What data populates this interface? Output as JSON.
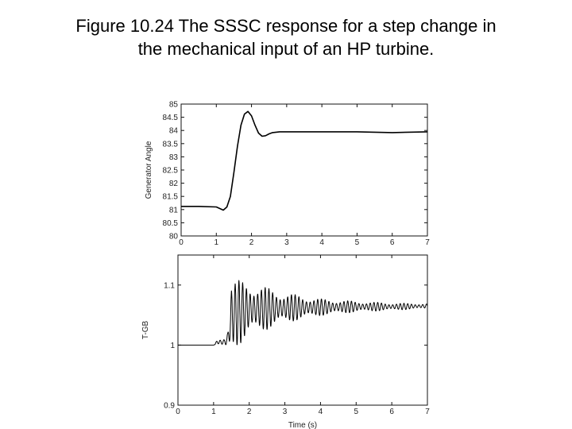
{
  "title": {
    "line1": "Figure 10.24 The SSSC response for a step change in",
    "line2": "the mechanical input of an HP turbine."
  },
  "chart_data": [
    {
      "type": "line",
      "ylabel": "Generator Angle",
      "xlabel": "",
      "xlim": [
        0,
        7
      ],
      "ylim": [
        80,
        85
      ],
      "xticks": [
        0,
        1,
        2,
        3,
        4,
        5,
        6,
        7
      ],
      "yticks": [
        80,
        80.5,
        81,
        81.5,
        82,
        82.5,
        83,
        83.5,
        84,
        84.5,
        85
      ],
      "yticklabels": [
        "80",
        "80.5",
        "81",
        "81.5",
        "82",
        "82.5",
        "83",
        "83.5",
        "84",
        "84.5",
        "85"
      ],
      "series": [
        {
          "x": [
            0,
            0.5,
            1.0,
            1.1,
            1.2,
            1.3,
            1.4,
            1.5,
            1.6,
            1.7,
            1.8,
            1.9,
            2.0,
            2.1,
            2.2,
            2.3,
            2.4,
            2.5,
            2.6,
            2.8,
            3.0,
            3.5,
            4.0,
            5.0,
            6.0,
            7.0
          ],
          "y": [
            81.12,
            81.12,
            81.1,
            81.04,
            80.98,
            81.1,
            81.5,
            82.4,
            83.4,
            84.2,
            84.62,
            84.72,
            84.55,
            84.2,
            83.9,
            83.78,
            83.8,
            83.87,
            83.92,
            83.95,
            83.95,
            83.95,
            83.95,
            83.95,
            83.92,
            83.95
          ]
        }
      ]
    },
    {
      "type": "line",
      "ylabel": "T-GB",
      "xlabel": "Time (s)",
      "xlim": [
        0,
        7
      ],
      "ylim": [
        0.9,
        1.15
      ],
      "xticks": [
        0,
        1,
        2,
        3,
        4,
        5,
        6,
        7
      ],
      "yticks": [
        0.9,
        1,
        1.1
      ],
      "yticklabels": [
        "0.9",
        "1",
        "1.1"
      ],
      "series": [
        {
          "description_free": true,
          "x": [
            0,
            1.0,
            1.1,
            1.2,
            1.3,
            1.4,
            1.5,
            2.0,
            3.0,
            4.0,
            5.0,
            6.0,
            7.0
          ],
          "y_center": [
            1.0,
            1.0,
            1.005,
            1.005,
            1.005,
            1.01,
            1.05,
            1.06,
            1.062,
            1.063,
            1.064,
            1.064,
            1.065
          ],
          "y_amplitude": [
            0,
            0,
            0.003,
            0.005,
            0.008,
            0.02,
            0.06,
            0.045,
            0.025,
            0.014,
            0.009,
            0.006,
            0.004
          ]
        }
      ]
    }
  ]
}
